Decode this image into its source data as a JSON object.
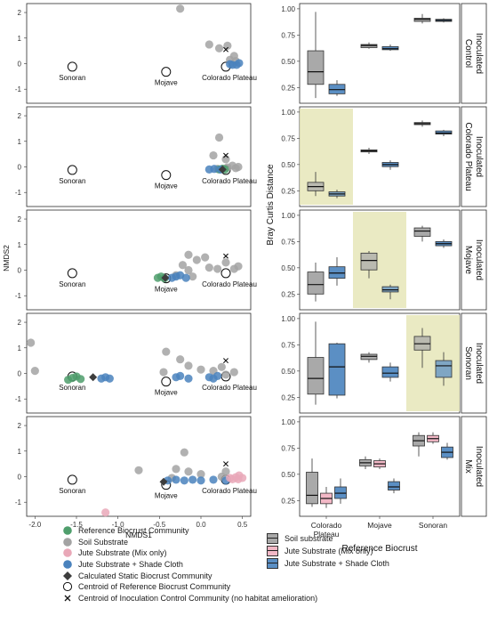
{
  "chart_data": [
    {
      "type": "scatter",
      "xlabel": "NMDS1",
      "ylabel": "NMDS2",
      "xlim": [
        -2.1,
        0.6
      ],
      "ylim": [
        -1.55,
        2.35
      ],
      "x_ticks": [
        -2.0,
        -1.5,
        -1.0,
        -0.5,
        0.0,
        0.5
      ],
      "x_tick_labels": [
        "-2.0",
        "-1.5",
        "-1.0",
        "-0.5",
        "0.0",
        "0.5"
      ],
      "y_ticks": [
        -1,
        0,
        1,
        2
      ],
      "y_tick_labels": [
        "-1",
        "0",
        "1",
        "2"
      ],
      "centroid_labels": {
        "sonoran": "Sonoran",
        "mojave": "Mojave",
        "colorado": "Colorado Plateau"
      },
      "centroids": {
        "sonoran": [
          -1.55,
          -0.12
        ],
        "mojave": [
          -0.42,
          -0.32
        ],
        "colorado": [
          0.3,
          -0.12
        ]
      },
      "panels": [
        {
          "id": "inoculated-control",
          "soil": [
            [
              -0.25,
              2.15
            ],
            [
              0.1,
              0.75
            ],
            [
              0.22,
              0.6
            ],
            [
              0.32,
              0.7
            ],
            [
              0.4,
              0.3
            ],
            [
              0.42,
              0.1
            ],
            [
              0.35,
              0.15
            ]
          ],
          "jute_shade": [
            [
              0.38,
              -0.05
            ],
            [
              0.43,
              -0.05
            ],
            [
              0.46,
              0.02
            ],
            [
              0.35,
              -0.02
            ]
          ],
          "reference": [],
          "jute_mix": [],
          "calculated": [],
          "control_x": [
            [
              0.3,
              0.55
            ]
          ]
        },
        {
          "id": "inoculated-colorado-plateau",
          "soil": [
            [
              0.22,
              1.15
            ],
            [
              0.15,
              0.45
            ],
            [
              0.3,
              0.3
            ],
            [
              0.38,
              0.05
            ],
            [
              0.42,
              -0.05
            ],
            [
              0.32,
              -0.02
            ],
            [
              0.45,
              0.0
            ],
            [
              0.2,
              -0.08
            ]
          ],
          "jute_shade": [
            [
              0.1,
              -0.1
            ],
            [
              0.16,
              -0.08
            ],
            [
              0.24,
              -0.1
            ]
          ],
          "reference": [
            [
              0.22,
              -0.1
            ],
            [
              0.26,
              -0.07
            ],
            [
              0.29,
              -0.1
            ]
          ],
          "jute_mix": [],
          "calculated": [
            [
              0.26,
              -0.1
            ]
          ],
          "control_x": [
            [
              0.3,
              0.45
            ]
          ]
        },
        {
          "id": "inoculated-mojave",
          "soil": [
            [
              -0.15,
              0.6
            ],
            [
              -0.05,
              0.4
            ],
            [
              -0.15,
              0.0
            ],
            [
              -0.3,
              -0.2
            ],
            [
              -0.1,
              -0.25
            ],
            [
              0.1,
              0.1
            ],
            [
              0.3,
              0.3
            ],
            [
              0.4,
              0.05
            ],
            [
              0.45,
              0.15
            ],
            [
              0.2,
              0.05
            ],
            [
              0.05,
              0.5
            ],
            [
              -0.22,
              0.2
            ]
          ],
          "jute_shade": [
            [
              -0.3,
              -0.25
            ],
            [
              -0.25,
              -0.2
            ],
            [
              -0.18,
              -0.3
            ],
            [
              -0.35,
              -0.3
            ]
          ],
          "reference": [
            [
              -0.52,
              -0.3
            ],
            [
              -0.48,
              -0.25
            ],
            [
              -0.44,
              -0.32
            ]
          ],
          "jute_mix": [],
          "calculated": [
            [
              -0.43,
              -0.3
            ]
          ],
          "control_x": [
            [
              0.3,
              0.55
            ]
          ]
        },
        {
          "id": "inoculated-sonoran",
          "soil": [
            [
              -2.05,
              1.2
            ],
            [
              -2.0,
              0.1
            ],
            [
              -0.42,
              0.85
            ],
            [
              -0.25,
              0.55
            ],
            [
              -0.15,
              0.3
            ],
            [
              0.0,
              0.15
            ],
            [
              0.15,
              0.1
            ],
            [
              0.3,
              -0.05
            ],
            [
              0.4,
              0.05
            ],
            [
              -0.45,
              0.05
            ],
            [
              0.25,
              0.25
            ]
          ],
          "jute_shade": [
            [
              -1.2,
              -0.2
            ],
            [
              -1.15,
              -0.15
            ],
            [
              -1.1,
              -0.2
            ],
            [
              -0.3,
              -0.15
            ],
            [
              -0.25,
              -0.1
            ],
            [
              -0.15,
              -0.2
            ],
            [
              0.1,
              -0.15
            ],
            [
              0.2,
              -0.1
            ],
            [
              0.15,
              -0.2
            ]
          ],
          "reference": [
            [
              -1.6,
              -0.25
            ],
            [
              -1.55,
              -0.18
            ],
            [
              -1.5,
              -0.12
            ],
            [
              -1.45,
              -0.22
            ]
          ],
          "jute_mix": [],
          "calculated": [
            [
              -1.3,
              -0.15
            ]
          ],
          "control_x": [
            [
              0.3,
              0.5
            ]
          ]
        },
        {
          "id": "inoculated-mix",
          "soil": [
            [
              -0.75,
              0.25
            ],
            [
              -0.2,
              0.95
            ],
            [
              -0.3,
              0.3
            ],
            [
              -0.15,
              0.2
            ],
            [
              0.0,
              0.1
            ],
            [
              0.3,
              0.2
            ],
            [
              0.25,
              0.0
            ],
            [
              -0.35,
              -0.05
            ]
          ],
          "jute_shade": [
            [
              -0.4,
              -0.15
            ],
            [
              -0.3,
              -0.12
            ],
            [
              -0.2,
              -0.15
            ],
            [
              -0.1,
              -0.12
            ],
            [
              0.0,
              -0.15
            ],
            [
              0.15,
              -0.12
            ],
            [
              0.3,
              -0.15
            ]
          ],
          "reference": [],
          "jute_mix": [
            [
              -1.15,
              -1.4
            ],
            [
              0.35,
              -0.05
            ],
            [
              0.42,
              -0.02
            ],
            [
              0.46,
              0.05
            ],
            [
              0.5,
              -0.05
            ],
            [
              0.38,
              -0.1
            ],
            [
              0.45,
              -0.1
            ]
          ],
          "calculated": [
            [
              -0.45,
              -0.2
            ]
          ],
          "control_x": [
            [
              0.3,
              0.5
            ]
          ]
        }
      ]
    },
    {
      "type": "box",
      "ylabel": "Bray Curtis Distance",
      "xlabel": "Reference Biocrust",
      "categories": [
        "Colorado\nPlateau",
        "Mojave",
        "Sonoran"
      ],
      "ylim": [
        0.1,
        1.05
      ],
      "y_ticks": [
        0.25,
        0.5,
        0.75,
        1.0
      ],
      "y_tick_labels": [
        "0.25",
        "0.50",
        "0.75",
        "1.00"
      ],
      "panels": [
        {
          "label": [
            "Inoculated",
            "Control"
          ],
          "highlight": null,
          "boxes": [
            {
              "cat": 0,
              "group": "soil",
              "min": 0.15,
              "q1": 0.28,
              "med": 0.4,
              "q3": 0.6,
              "max": 0.97
            },
            {
              "cat": 0,
              "group": "jute_shade",
              "min": 0.17,
              "q1": 0.19,
              "med": 0.23,
              "q3": 0.28,
              "max": 0.32
            },
            {
              "cat": 1,
              "group": "soil",
              "min": 0.62,
              "q1": 0.63,
              "med": 0.65,
              "q3": 0.66,
              "max": 0.68
            },
            {
              "cat": 1,
              "group": "jute_shade",
              "min": 0.6,
              "q1": 0.61,
              "med": 0.62,
              "q3": 0.64,
              "max": 0.66
            },
            {
              "cat": 2,
              "group": "soil",
              "min": 0.86,
              "q1": 0.88,
              "med": 0.9,
              "q3": 0.91,
              "max": 0.95
            },
            {
              "cat": 2,
              "group": "jute_shade",
              "min": 0.87,
              "q1": 0.88,
              "med": 0.89,
              "q3": 0.9,
              "max": 0.91
            }
          ]
        },
        {
          "label": [
            "Inoculated",
            "Colorado Plateau"
          ],
          "highlight": 0,
          "boxes": [
            {
              "cat": 0,
              "group": "soil",
              "min": 0.2,
              "q1": 0.25,
              "med": 0.29,
              "q3": 0.33,
              "max": 0.43
            },
            {
              "cat": 0,
              "group": "jute_shade",
              "min": 0.18,
              "q1": 0.2,
              "med": 0.22,
              "q3": 0.24,
              "max": 0.26
            },
            {
              "cat": 1,
              "group": "soil",
              "min": 0.6,
              "q1": 0.62,
              "med": 0.63,
              "q3": 0.64,
              "max": 0.66
            },
            {
              "cat": 1,
              "group": "jute_shade",
              "min": 0.45,
              "q1": 0.48,
              "med": 0.5,
              "q3": 0.52,
              "max": 0.54
            },
            {
              "cat": 2,
              "group": "soil",
              "min": 0.86,
              "q1": 0.88,
              "med": 0.89,
              "q3": 0.9,
              "max": 0.92
            },
            {
              "cat": 2,
              "group": "jute_shade",
              "min": 0.77,
              "q1": 0.79,
              "med": 0.8,
              "q3": 0.82,
              "max": 0.83
            }
          ]
        },
        {
          "label": [
            "Inoculated",
            "Mojave"
          ],
          "highlight": 1,
          "boxes": [
            {
              "cat": 0,
              "group": "soil",
              "min": 0.18,
              "q1": 0.25,
              "med": 0.34,
              "q3": 0.46,
              "max": 0.55
            },
            {
              "cat": 0,
              "group": "jute_shade",
              "min": 0.33,
              "q1": 0.4,
              "med": 0.45,
              "q3": 0.51,
              "max": 0.6
            },
            {
              "cat": 1,
              "group": "soil",
              "min": 0.4,
              "q1": 0.48,
              "med": 0.57,
              "q3": 0.64,
              "max": 0.66
            },
            {
              "cat": 1,
              "group": "jute_shade",
              "min": 0.2,
              "q1": 0.27,
              "med": 0.29,
              "q3": 0.32,
              "max": 0.34
            },
            {
              "cat": 2,
              "group": "soil",
              "min": 0.75,
              "q1": 0.8,
              "med": 0.85,
              "q3": 0.88,
              "max": 0.9
            },
            {
              "cat": 2,
              "group": "jute_shade",
              "min": 0.69,
              "q1": 0.71,
              "med": 0.73,
              "q3": 0.75,
              "max": 0.77
            }
          ]
        },
        {
          "label": [
            "Inoculated",
            "Sonoran"
          ],
          "highlight": 2,
          "boxes": [
            {
              "cat": 0,
              "group": "soil",
              "min": 0.18,
              "q1": 0.28,
              "med": 0.43,
              "q3": 0.63,
              "max": 0.97
            },
            {
              "cat": 0,
              "group": "jute_shade",
              "min": 0.24,
              "q1": 0.27,
              "med": 0.54,
              "q3": 0.76,
              "max": 0.77
            },
            {
              "cat": 2,
              "group": "soil",
              "min": 0.53,
              "q1": 0.7,
              "med": 0.76,
              "q3": 0.83,
              "max": 0.91
            },
            {
              "cat": 2,
              "group": "jute_shade",
              "min": 0.36,
              "q1": 0.44,
              "med": 0.55,
              "q3": 0.6,
              "max": 0.68
            },
            {
              "cat": 1,
              "group": "soil",
              "min": 0.58,
              "q1": 0.61,
              "med": 0.64,
              "q3": 0.66,
              "max": 0.68
            },
            {
              "cat": 1,
              "group": "jute_shade",
              "min": 0.4,
              "q1": 0.44,
              "med": 0.48,
              "q3": 0.54,
              "max": 0.58
            }
          ]
        },
        {
          "label": [
            "Inoculated",
            "Mix"
          ],
          "highlight": null,
          "boxes": [
            {
              "cat": 0,
              "group": "soil",
              "min": 0.19,
              "q1": 0.22,
              "med": 0.3,
              "q3": 0.52,
              "max": 0.65
            },
            {
              "cat": 0,
              "group": "jute_mix",
              "min": 0.18,
              "q1": 0.22,
              "med": 0.27,
              "q3": 0.32,
              "max": 0.38
            },
            {
              "cat": 0,
              "group": "jute_shade",
              "min": 0.22,
              "q1": 0.27,
              "med": 0.32,
              "q3": 0.38,
              "max": 0.46
            },
            {
              "cat": 1,
              "group": "soil",
              "min": 0.55,
              "q1": 0.58,
              "med": 0.61,
              "q3": 0.64,
              "max": 0.67
            },
            {
              "cat": 1,
              "group": "jute_mix",
              "min": 0.55,
              "q1": 0.57,
              "med": 0.6,
              "q3": 0.63,
              "max": 0.65
            },
            {
              "cat": 1,
              "group": "jute_shade",
              "min": 0.32,
              "q1": 0.35,
              "med": 0.38,
              "q3": 0.43,
              "max": 0.46
            },
            {
              "cat": 2,
              "group": "soil",
              "min": 0.67,
              "q1": 0.77,
              "med": 0.82,
              "q3": 0.87,
              "max": 0.9
            },
            {
              "cat": 2,
              "group": "jute_mix",
              "min": 0.79,
              "q1": 0.81,
              "med": 0.84,
              "q3": 0.87,
              "max": 0.9
            },
            {
              "cat": 2,
              "group": "jute_shade",
              "min": 0.64,
              "q1": 0.66,
              "med": 0.71,
              "q3": 0.76,
              "max": 0.8
            }
          ]
        }
      ]
    }
  ],
  "colors": {
    "reference": "#4f9e6c",
    "soil": "#a3a3a3",
    "jute_mix": "#e9a8b8",
    "jute_shade": "#4a82bd",
    "calculated": "#3d3d3d",
    "soil_box": "#a9a9a9",
    "jute_mix_box": "#f2b8c6",
    "jute_shade_box": "#5b8fc4",
    "highlight": "#e6e6b8"
  },
  "legend_left": [
    {
      "key": "reference",
      "label": "Reference Biocrust Community",
      "icon": "filled-circle-icon"
    },
    {
      "key": "soil",
      "label": "Soil Substrate",
      "icon": "filled-circle-icon"
    },
    {
      "key": "jute_mix",
      "label": "Jute Substrate (Mix only)",
      "icon": "filled-circle-icon"
    },
    {
      "key": "jute_shade",
      "label": "Jute Substrate + Shade Cloth",
      "icon": "filled-circle-icon"
    },
    {
      "key": "calculated",
      "label": "Calculated Static Biocrust Community",
      "icon": "diamond-icon"
    },
    {
      "key": "centroid",
      "label": "Centroid of Reference Biocrust Community",
      "icon": "open-circle-icon"
    },
    {
      "key": "control",
      "label": "Centroid of Inoculation Control Community (no habitat amelioration)",
      "icon": "cross-icon"
    }
  ],
  "legend_right": [
    {
      "key": "soil_box",
      "label": "Soil substrate"
    },
    {
      "key": "jute_mix_box",
      "label": "Jute Substrate (Mix only)"
    },
    {
      "key": "jute_shade_box",
      "label": "Jute Substrate + Shade Cloth"
    }
  ]
}
